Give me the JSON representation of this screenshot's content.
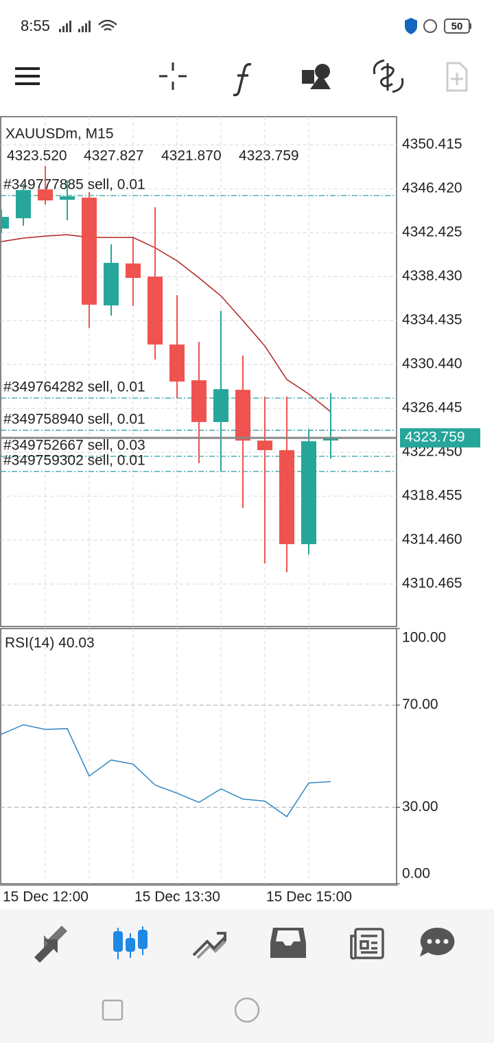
{
  "status_bar": {
    "time": "8:55",
    "battery": "50"
  },
  "chart": {
    "type": "candlestick",
    "symbol": "XAUUSDm, M15",
    "ohlc_labels": [
      "4323.520",
      "4327.827",
      "4321.870",
      "4323.759"
    ],
    "categories": [
      "15 Dec 12:00",
      null,
      null,
      null,
      null,
      null,
      "15 Dec 13:30",
      null,
      null,
      null,
      null,
      null,
      "15 Dec 15:00",
      null,
      null,
      null
    ],
    "open": [
      4342.8,
      4343.74,
      4346.36,
      4345.42,
      4345.61,
      4335.81,
      4339.62,
      4338.43,
      4332.25,
      4329.0,
      4325.2,
      4328.13,
      4323.51,
      4322.64,
      4314.09,
      4323.52
    ],
    "high": [
      4344.5,
      4346.86,
      4348.48,
      4347.17,
      4346.11,
      4341.37,
      4341.93,
      4344.74,
      4336.74,
      4332.5,
      4335.31,
      4331.25,
      4327.5,
      4327.5,
      4324.57,
      4327.827
    ],
    "low": [
      4342.4,
      4343.05,
      4344.98,
      4343.55,
      4333.75,
      4334.87,
      4335.75,
      4330.88,
      4327.38,
      4321.45,
      4320.77,
      4317.39,
      4312.34,
      4311.53,
      4313.15,
      4321.87
    ],
    "close": [
      4343.86,
      4346.3,
      4345.36,
      4345.73,
      4335.87,
      4339.68,
      4338.31,
      4332.25,
      4328.88,
      4325.2,
      4328.19,
      4323.51,
      4322.64,
      4314.09,
      4323.45,
      4323.759
    ],
    "colors": {
      "up": "#26a69a",
      "down": "#ef5350"
    },
    "ma": {
      "color": "#b22222",
      "values": [
        4341.61,
        4341.93,
        4342.11,
        4342.24,
        4341.99,
        4341.99,
        4341.99,
        4341.05,
        4339.87,
        4338.31,
        4336.68,
        4334.43,
        4332.12,
        4329.07,
        4327.75,
        4326.13
      ]
    },
    "orders": [
      {
        "label": "#349777885 sell, 0.01",
        "price": 4345.8
      },
      {
        "label": "#349764282 sell, 0.01",
        "price": 4327.38
      },
      {
        "label": "#349758940 sell, 0.01",
        "price": 4324.45
      },
      {
        "label": "#349752667 sell, 0.03",
        "price": 4322.08
      },
      {
        "label": "#349759302 sell, 0.01",
        "price": 4320.7
      }
    ],
    "order_color": "#2a9d9d",
    "current_price": {
      "value": 4323.759,
      "label": "4323.759"
    },
    "current_price_color": "#26a69a",
    "ylim": [
      4306.6,
      4352.98
    ],
    "yticks": [
      {
        "value": 4350.415,
        "label": "4350.415"
      },
      {
        "value": 4346.42,
        "label": "4346.420"
      },
      {
        "value": 4342.425,
        "label": "4342.425"
      },
      {
        "value": 4338.43,
        "label": "4338.430"
      },
      {
        "value": 4334.435,
        "label": "4334.435"
      },
      {
        "value": 4330.44,
        "label": "4330.440"
      },
      {
        "value": 4326.445,
        "label": "4326.445"
      },
      {
        "value": 4322.45,
        "label": "4322.450"
      },
      {
        "value": 4318.455,
        "label": "4318.455"
      },
      {
        "value": 4314.46,
        "label": "4314.460"
      },
      {
        "value": 4310.465,
        "label": "4310.465"
      }
    ],
    "grid": true
  },
  "rsi": {
    "type": "line",
    "label": "RSI(14) 40.03",
    "color": "#2e86c1",
    "values": [
      58.6,
      62.3,
      60.5,
      60.8,
      42.2,
      48.5,
      46.9,
      38.7,
      35.5,
      31.9,
      37.2,
      33.2,
      32.4,
      26.3,
      39.5,
      40.03
    ],
    "ylim": [
      0,
      100
    ],
    "yticks": [
      {
        "value": 100,
        "label": "100.00"
      },
      {
        "value": 70,
        "label": "70.00"
      },
      {
        "value": 30,
        "label": "30.00"
      },
      {
        "value": 0,
        "label": "0.00"
      }
    ],
    "levels": [
      70,
      30
    ]
  }
}
